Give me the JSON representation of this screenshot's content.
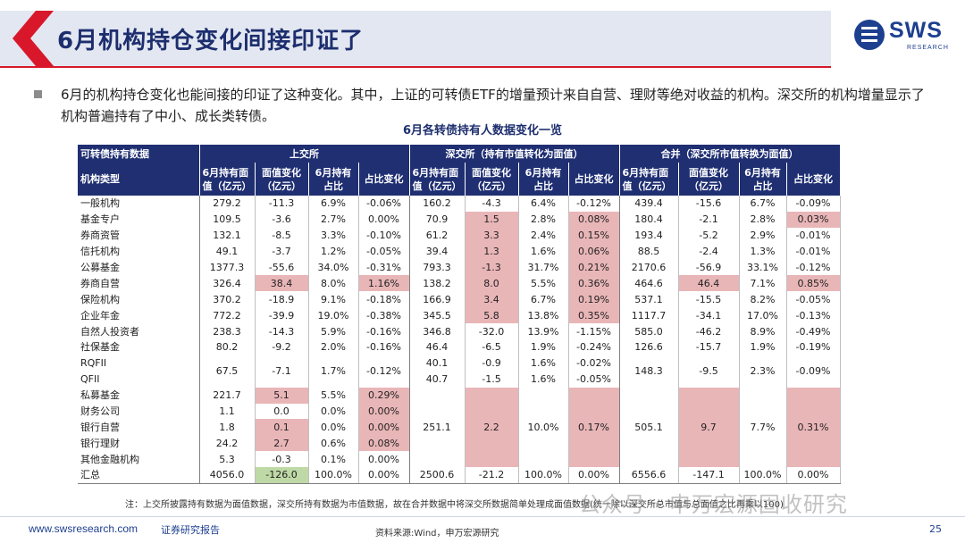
{
  "header": {
    "title": "6月机构持仓变化间接印证了",
    "logo_text": "SWS",
    "logo_sub": "RESEARCH"
  },
  "bullet": {
    "text": "6月的机构持仓变化也能间接的印证了这种变化。其中，上证的可转债ETF的增量预计来自自营、理财等绝对收益的机构。深交所的机构增量显示了机构普遍持有了中小、成长类转债。"
  },
  "table": {
    "caption": "6月各转债持有人数据变化一览",
    "group_headers": [
      "可转债持有数据",
      "上交所",
      "深交所（持有市值转化为面值）",
      "合并（深交所市值转换为面值）"
    ],
    "col_headers": [
      "机构类型",
      "6月持有面值（亿元）",
      "面值变化（亿元）",
      "6月持有占比",
      "占比变化",
      "6月持有面值（亿元）",
      "面值变化（亿元）",
      "6月持有占比",
      "占比变化",
      "6月持有面值（亿元）",
      "面值变化（亿元）",
      "6月持有占比",
      "占比变化"
    ],
    "rows": [
      {
        "name": "一般机构",
        "sh": [
          "279.2",
          "-11.3",
          "6.9%",
          "-0.06%"
        ],
        "sz": [
          "160.2",
          "-4.3",
          "6.4%",
          "-0.12%"
        ],
        "all": [
          "439.4",
          "-15.6",
          "6.7%",
          "-0.09%"
        ]
      },
      {
        "name": "基金专户",
        "sh": [
          "109.5",
          "-3.6",
          "2.7%",
          "0.00%"
        ],
        "sz": [
          "70.9",
          "1.5",
          "2.8%",
          "0.08%"
        ],
        "all": [
          "180.4",
          "-2.1",
          "2.8%",
          "0.03%"
        ]
      },
      {
        "name": "券商资管",
        "sh": [
          "132.1",
          "-8.5",
          "3.3%",
          "-0.10%"
        ],
        "sz": [
          "61.2",
          "3.3",
          "2.4%",
          "0.15%"
        ],
        "all": [
          "193.4",
          "-5.2",
          "2.9%",
          "-0.01%"
        ]
      },
      {
        "name": "信托机构",
        "sh": [
          "49.1",
          "-3.7",
          "1.2%",
          "-0.05%"
        ],
        "sz": [
          "39.4",
          "1.3",
          "1.6%",
          "0.06%"
        ],
        "all": [
          "88.5",
          "-2.4",
          "1.3%",
          "-0.01%"
        ]
      },
      {
        "name": "公募基金",
        "sh": [
          "1377.3",
          "-55.6",
          "34.0%",
          "-0.31%"
        ],
        "sz": [
          "793.3",
          "-1.3",
          "31.7%",
          "0.21%"
        ],
        "all": [
          "2170.6",
          "-56.9",
          "33.1%",
          "-0.12%"
        ]
      },
      {
        "name": "券商自营",
        "sh": [
          "326.4",
          "38.4",
          "8.0%",
          "1.16%"
        ],
        "sz": [
          "138.2",
          "8.0",
          "5.5%",
          "0.36%"
        ],
        "all": [
          "464.6",
          "46.4",
          "7.1%",
          "0.85%"
        ]
      },
      {
        "name": "保险机构",
        "sh": [
          "370.2",
          "-18.9",
          "9.1%",
          "-0.18%"
        ],
        "sz": [
          "166.9",
          "3.4",
          "6.7%",
          "0.19%"
        ],
        "all": [
          "537.1",
          "-15.5",
          "8.2%",
          "-0.05%"
        ]
      },
      {
        "name": "企业年金",
        "sh": [
          "772.2",
          "-39.9",
          "19.0%",
          "-0.38%"
        ],
        "sz": [
          "345.5",
          "5.8",
          "13.8%",
          "0.35%"
        ],
        "all": [
          "1117.7",
          "-34.1",
          "17.0%",
          "-0.13%"
        ]
      },
      {
        "name": "自然人投资者",
        "sh": [
          "238.3",
          "-14.3",
          "5.9%",
          "-0.16%"
        ],
        "sz": [
          "346.8",
          "-32.0",
          "13.9%",
          "-1.15%"
        ],
        "all": [
          "585.0",
          "-46.2",
          "8.9%",
          "-0.49%"
        ]
      },
      {
        "name": "社保基金",
        "sh": [
          "80.2",
          "-9.2",
          "2.0%",
          "-0.16%"
        ],
        "sz": [
          "46.4",
          "-6.5",
          "1.9%",
          "-0.24%"
        ],
        "all": [
          "126.6",
          "-15.7",
          "1.9%",
          "-0.19%"
        ]
      }
    ],
    "rqfii": {
      "name": "RQFII",
      "sh": [
        "67.5",
        "-7.1",
        "1.7%",
        "-0.12%"
      ],
      "sz": [
        "40.1",
        "-0.9",
        "1.6%",
        "-0.02%"
      ],
      "all": [
        "148.3",
        "-9.5",
        "2.3%",
        "-0.09%"
      ]
    },
    "qfii": {
      "name": "QFII",
      "sz": [
        "40.7",
        "-1.5",
        "1.6%",
        "-0.05%"
      ]
    },
    "others": [
      {
        "name": "私募基金",
        "sh": [
          "221.7",
          "5.1",
          "5.5%",
          "0.29%"
        ]
      },
      {
        "name": "财务公司",
        "sh": [
          "1.1",
          "0.0",
          "0.0%",
          "0.00%"
        ]
      },
      {
        "name": "银行自营",
        "sh": [
          "1.8",
          "0.1",
          "0.0%",
          "0.00%"
        ]
      },
      {
        "name": "银行理财",
        "sh": [
          "24.2",
          "2.7",
          "0.6%",
          "0.08%"
        ]
      },
      {
        "name": "其他金融机构",
        "sh": [
          "5.3",
          "-0.3",
          "0.1%",
          "0.00%"
        ]
      }
    ],
    "others_merged": {
      "sz": [
        "251.1",
        "2.2",
        "10.0%",
        "0.17%"
      ],
      "all": [
        "505.1",
        "9.7",
        "7.7%",
        "0.31%"
      ]
    },
    "total": {
      "name": "汇总",
      "sh": [
        "4056.0",
        "-126.0",
        "100.0%",
        "0.00%"
      ],
      "sz": [
        "2500.6",
        "-21.2",
        "100.0%",
        "0.00%"
      ],
      "all": [
        "6556.6",
        "-147.1",
        "100.0%",
        "0.00%"
      ]
    }
  },
  "note": "注：上交所披露持有数据为面值数据，深交所持有数据为市值数据，故在合并数据中将深交所数据简单处理成面值数据(统一除以深交所总市值与总面值之比再乘以100)",
  "watermark": "公众号 · 申万宏源固收研究",
  "footer": {
    "url": "www.swsresearch.com",
    "label": "证券研究报告",
    "source": "资料来源:Wind，申万宏源研究",
    "page": "25"
  },
  "colors": {
    "navy": "#1f2f72",
    "accent_red": "#d8182a",
    "highlight_pink": "#e9b6b8",
    "highlight_green": "#bfd9a6"
  }
}
